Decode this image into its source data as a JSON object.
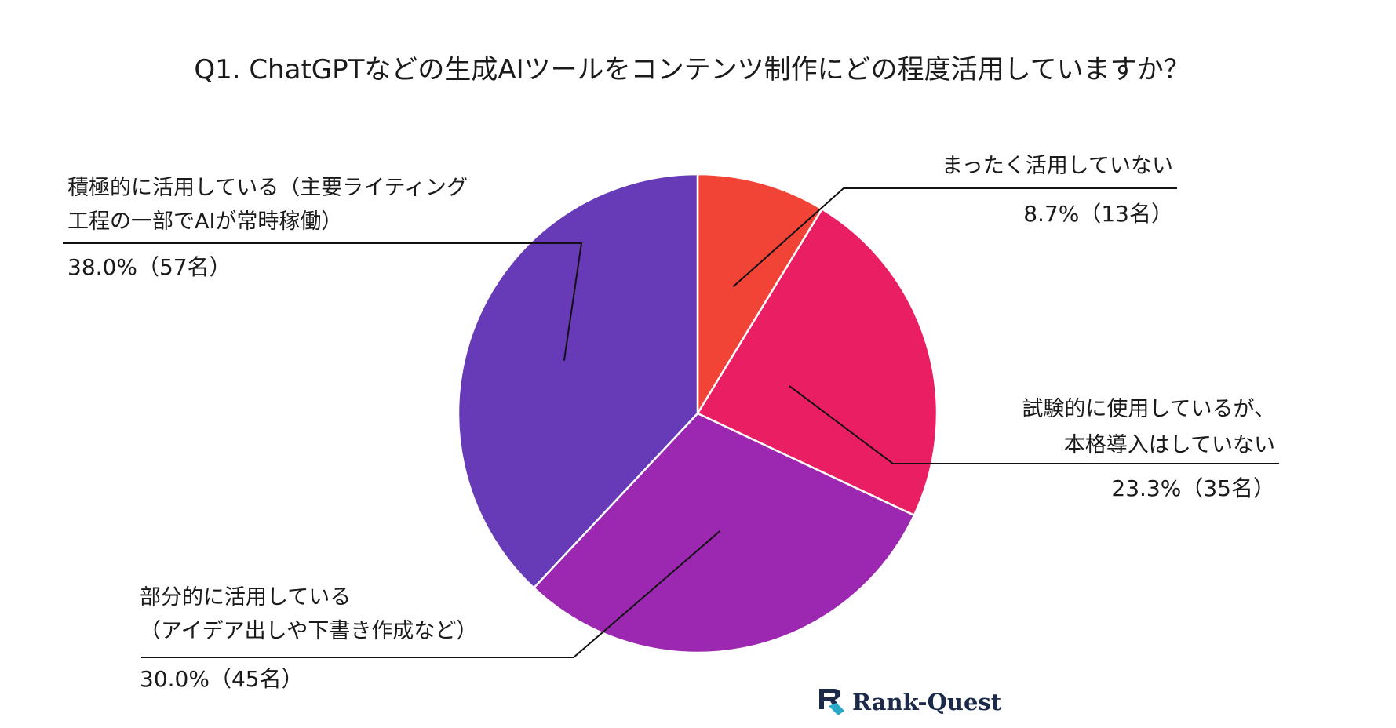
{
  "chart_data": {
    "type": "pie",
    "title": "Q1. ChatGPTなどの生成AIツールをコンテンツ制作にどの程度活用していますか？",
    "start": "12 o'clock",
    "direction": "clockwise",
    "slices": [
      {
        "key": "none",
        "label_lines": [
          "まったく活用していない"
        ],
        "value": 8.7,
        "count_text": "8.7%（13名）",
        "color": "#f24436"
      },
      {
        "key": "trial",
        "label_lines": [
          "試験的に使用しているが、",
          "本格導入はしていない"
        ],
        "value": 23.3,
        "count_text": "23.3%（35名）",
        "color": "#e91e63"
      },
      {
        "key": "partial",
        "label_lines": [
          "部分的に活用している",
          "（アイデア出しや下書き作成など）"
        ],
        "value": 30.0,
        "count_text": "30.0%（45名）",
        "color": "#9c27b0"
      },
      {
        "key": "active",
        "label_lines": [
          "積極的に活用している（主要ライティング",
          "工程の一部でAIが常時稼働）"
        ],
        "value": 38.0,
        "count_text": "38.0%（57名）",
        "color": "#673ab7"
      }
    ]
  },
  "brand": {
    "name": "Rank-Quest",
    "color": "#1c2a4a",
    "accent": "#29a8c8"
  }
}
